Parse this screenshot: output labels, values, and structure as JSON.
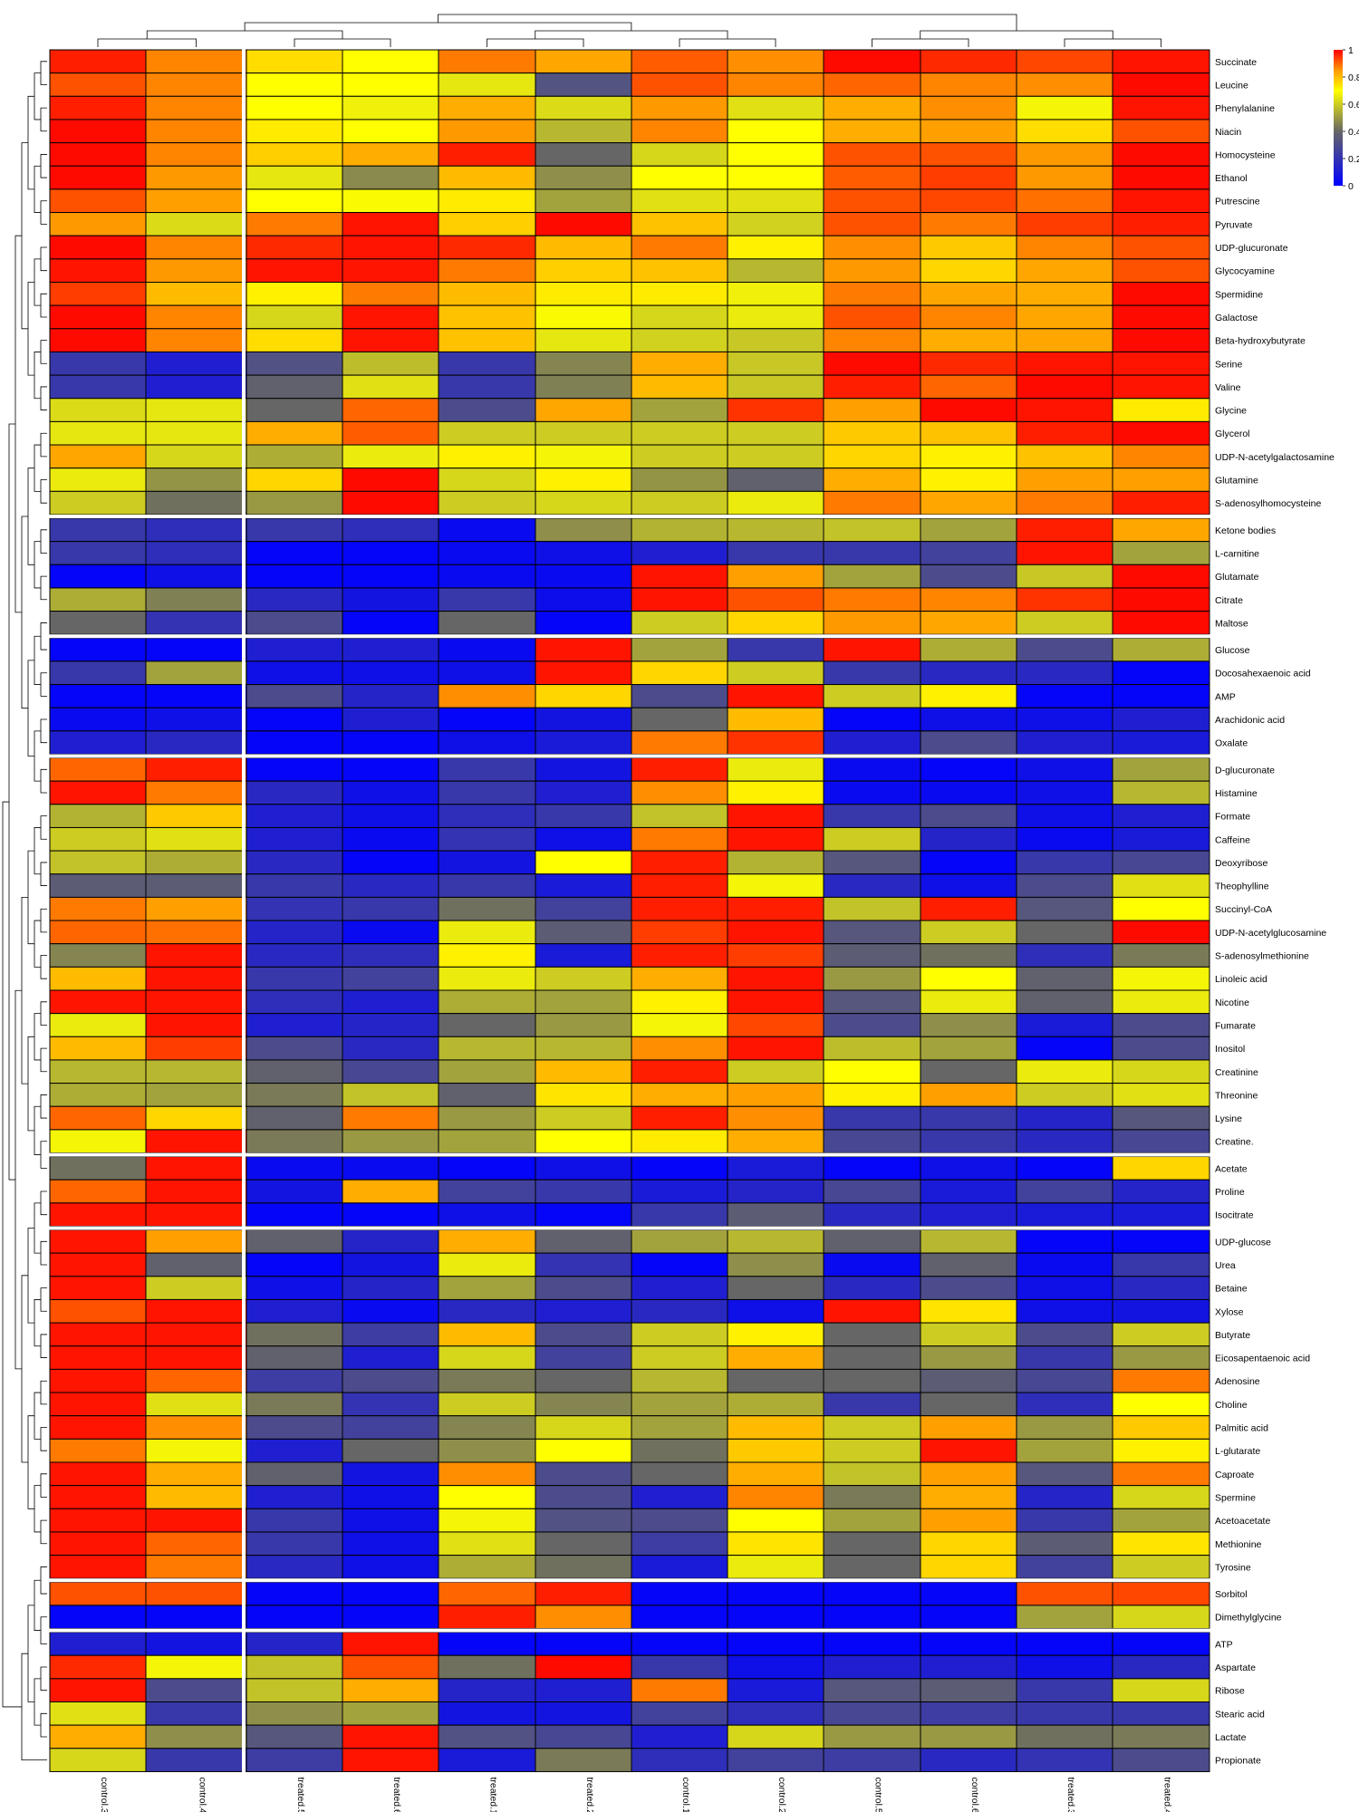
{
  "chart_data": {
    "type": "heatmap",
    "title": "",
    "colors": {
      "low": "#0000FF",
      "mid_low": "#666666",
      "mid": "#FFFF00",
      "high": "#FF0000"
    },
    "colorbar": {
      "ticks": [
        0,
        0.2,
        0.4,
        0.6,
        0.8,
        1
      ],
      "labels": [
        "0",
        "0.2",
        "0.4",
        "0.6",
        "0.8",
        "1"
      ]
    },
    "columns": [
      "control.3",
      "control.4",
      "treated.5",
      "treated.6",
      "treated.1",
      "treated.2",
      "control.1",
      "control.2",
      "control.5",
      "control.6",
      "treated.3",
      "treated.4"
    ],
    "rows": [
      "Succinate",
      "Leucine",
      "Phenylalanine",
      "Niacin",
      "Homocysteine",
      "Ethanol",
      "Putrescine",
      "Pyruvate",
      "UDP-glucuronate",
      "Glycocyamine",
      "Spermidine",
      "Galactose",
      "Beta-hydroxybutyrate",
      "Serine",
      "Valine",
      "Glycine",
      "Glycerol",
      "UDP-N-acetylgalactosamine",
      "Glutamine",
      "S-adenosylhomocysteine",
      "Ketone bodies",
      "L-carnitine",
      "Glutamate",
      "Citrate",
      "Maltose",
      "Glucose",
      "Docosahexaenoic acid",
      "AMP",
      "Arachidonic acid",
      "Oxalate",
      "D-glucuronate",
      "Histamine",
      "Formate",
      "Caffeine",
      "Deoxyribose",
      "Theophylline",
      "Succinyl-CoA",
      "UDP-N-acetylglucosamine",
      "S-adenosylmethionine",
      "Linoleic acid",
      "Nicotine",
      "Fumarate",
      "Inositol",
      "Creatinine",
      "Threonine",
      "Lysine",
      "Creatine.",
      "Acetate",
      "Proline",
      "Isocitrate",
      "UDP-glucose",
      "Urea",
      "Betaine",
      "Xylose",
      "Butyrate",
      "Eicosapentaenoic acid",
      "Adenosine",
      "Choline",
      "Palmitic acid",
      "L-glutarate",
      "Caproate",
      "Spermine",
      "Acetoacetate",
      "Methionine",
      "Tyrosine",
      "Sorbitol",
      "Dimethylglycine",
      "ATP",
      "Aspartate",
      "Ribose",
      "Stearic acid",
      "Lactate",
      "Propionate"
    ],
    "row_group_sizes": [
      20,
      5,
      5,
      17,
      3,
      15,
      2,
      6
    ],
    "col_group_sizes": [
      2,
      10
    ],
    "values": [
      [
        0.97,
        0.87,
        0.75,
        0.7,
        0.88,
        0.83,
        0.91,
        0.86,
        0.99,
        0.96,
        0.93,
        0.98
      ],
      [
        0.92,
        0.87,
        0.7,
        0.7,
        0.65,
        0.33,
        0.92,
        0.87,
        0.9,
        0.87,
        0.86,
        0.99
      ],
      [
        0.97,
        0.87,
        0.7,
        0.67,
        0.82,
        0.63,
        0.85,
        0.64,
        0.82,
        0.86,
        0.68,
        0.98
      ],
      [
        0.99,
        0.87,
        0.73,
        0.7,
        0.85,
        0.56,
        0.87,
        0.7,
        0.82,
        0.84,
        0.75,
        0.92
      ],
      [
        0.99,
        0.87,
        0.77,
        0.82,
        0.97,
        0.4,
        0.62,
        0.7,
        0.92,
        0.92,
        0.85,
        0.99
      ],
      [
        0.99,
        0.85,
        0.65,
        0.47,
        0.8,
        0.48,
        0.7,
        0.7,
        0.91,
        0.94,
        0.85,
        0.99
      ],
      [
        0.92,
        0.84,
        0.7,
        0.69,
        0.73,
        0.52,
        0.64,
        0.64,
        0.92,
        0.93,
        0.89,
        0.98
      ],
      [
        0.85,
        0.63,
        0.88,
        0.98,
        0.77,
        0.99,
        0.79,
        0.61,
        0.92,
        0.88,
        0.94,
        0.97
      ],
      [
        0.99,
        0.87,
        0.96,
        0.98,
        0.96,
        0.8,
        0.88,
        0.72,
        0.86,
        0.78,
        0.87,
        0.92
      ],
      [
        0.98,
        0.85,
        0.98,
        0.98,
        0.88,
        0.77,
        0.79,
        0.56,
        0.85,
        0.76,
        0.83,
        0.92
      ],
      [
        0.94,
        0.8,
        0.72,
        0.88,
        0.8,
        0.73,
        0.73,
        0.67,
        0.88,
        0.83,
        0.82,
        0.99
      ],
      [
        0.99,
        0.87,
        0.62,
        0.98,
        0.79,
        0.69,
        0.62,
        0.66,
        0.92,
        0.87,
        0.83,
        0.99
      ],
      [
        0.99,
        0.87,
        0.75,
        0.98,
        0.79,
        0.65,
        0.61,
        0.59,
        0.87,
        0.82,
        0.83,
        0.99
      ],
      [
        0.22,
        0.12,
        0.32,
        0.57,
        0.22,
        0.46,
        0.82,
        0.59,
        0.99,
        0.96,
        0.98,
        0.98
      ],
      [
        0.22,
        0.12,
        0.38,
        0.64,
        0.22,
        0.45,
        0.8,
        0.59,
        0.97,
        0.9,
        0.99,
        0.98
      ],
      [
        0.63,
        0.65,
        0.4,
        0.9,
        0.3,
        0.83,
        0.52,
        0.95,
        0.84,
        0.99,
        0.98,
        0.73
      ],
      [
        0.65,
        0.65,
        0.82,
        0.91,
        0.6,
        0.6,
        0.6,
        0.6,
        0.78,
        0.79,
        0.97,
        0.99
      ],
      [
        0.83,
        0.62,
        0.54,
        0.66,
        0.72,
        0.68,
        0.6,
        0.6,
        0.76,
        0.72,
        0.79,
        0.87
      ],
      [
        0.66,
        0.49,
        0.76,
        0.99,
        0.62,
        0.72,
        0.49,
        0.38,
        0.82,
        0.72,
        0.84,
        0.84
      ],
      [
        0.6,
        0.42,
        0.5,
        0.99,
        0.6,
        0.62,
        0.6,
        0.66,
        0.88,
        0.83,
        0.88,
        0.97
      ],
      [
        0.22,
        0.18,
        0.22,
        0.18,
        0.04,
        0.48,
        0.55,
        0.56,
        0.58,
        0.52,
        0.97,
        0.83
      ],
      [
        0.22,
        0.18,
        0.02,
        0.02,
        0.04,
        0.06,
        0.12,
        0.22,
        0.22,
        0.26,
        0.98,
        0.52
      ],
      [
        0.02,
        0.06,
        0.02,
        0.02,
        0.04,
        0.04,
        0.98,
        0.84,
        0.52,
        0.3,
        0.59,
        0.99
      ],
      [
        0.54,
        0.45,
        0.16,
        0.08,
        0.22,
        0.05,
        0.98,
        0.92,
        0.88,
        0.87,
        0.95,
        0.99
      ],
      [
        0.4,
        0.2,
        0.3,
        0.02,
        0.4,
        0.02,
        0.6,
        0.76,
        0.85,
        0.83,
        0.6,
        0.99
      ],
      [
        0.02,
        0.02,
        0.12,
        0.12,
        0.04,
        0.98,
        0.52,
        0.22,
        0.98,
        0.54,
        0.3,
        0.54
      ],
      [
        0.22,
        0.52,
        0.06,
        0.06,
        0.06,
        0.98,
        0.76,
        0.6,
        0.22,
        0.16,
        0.16,
        0.02
      ],
      [
        0.02,
        0.02,
        0.3,
        0.14,
        0.86,
        0.76,
        0.3,
        0.98,
        0.6,
        0.72,
        0.02,
        0.02
      ],
      [
        0.04,
        0.06,
        0.02,
        0.12,
        0.02,
        0.08,
        0.4,
        0.8,
        0.02,
        0.06,
        0.06,
        0.12
      ],
      [
        0.12,
        0.16,
        0.02,
        0.02,
        0.06,
        0.1,
        0.88,
        0.95,
        0.12,
        0.3,
        0.12,
        0.1
      ],
      [
        0.9,
        0.97,
        0.02,
        0.02,
        0.22,
        0.08,
        0.97,
        0.66,
        0.04,
        0.02,
        0.06,
        0.52
      ],
      [
        0.98,
        0.88,
        0.16,
        0.06,
        0.22,
        0.12,
        0.86,
        0.72,
        0.04,
        0.04,
        0.06,
        0.56
      ],
      [
        0.55,
        0.78,
        0.12,
        0.06,
        0.18,
        0.22,
        0.58,
        0.98,
        0.22,
        0.3,
        0.06,
        0.12
      ],
      [
        0.6,
        0.64,
        0.12,
        0.04,
        0.2,
        0.06,
        0.88,
        0.98,
        0.6,
        0.14,
        0.04,
        0.1
      ],
      [
        0.58,
        0.54,
        0.16,
        0.02,
        0.08,
        0.7,
        0.97,
        0.55,
        0.34,
        0.02,
        0.22,
        0.28
      ],
      [
        0.36,
        0.36,
        0.22,
        0.16,
        0.22,
        0.1,
        0.97,
        0.68,
        0.16,
        0.06,
        0.3,
        0.64
      ],
      [
        0.88,
        0.84,
        0.2,
        0.22,
        0.42,
        0.26,
        0.97,
        0.97,
        0.58,
        0.97,
        0.34,
        0.7
      ],
      [
        0.9,
        0.89,
        0.14,
        0.04,
        0.66,
        0.36,
        0.94,
        0.98,
        0.34,
        0.6,
        0.4,
        0.99
      ],
      [
        0.46,
        0.98,
        0.16,
        0.18,
        0.72,
        0.1,
        0.97,
        0.94,
        0.36,
        0.42,
        0.18,
        0.44
      ],
      [
        0.8,
        0.98,
        0.22,
        0.26,
        0.66,
        0.6,
        0.82,
        0.98,
        0.5,
        0.7,
        0.38,
        0.68
      ],
      [
        0.98,
        0.98,
        0.18,
        0.12,
        0.54,
        0.52,
        0.72,
        0.98,
        0.34,
        0.66,
        0.38,
        0.66
      ],
      [
        0.66,
        0.98,
        0.12,
        0.14,
        0.4,
        0.5,
        0.68,
        0.93,
        0.3,
        0.48,
        0.1,
        0.3
      ],
      [
        0.8,
        0.94,
        0.3,
        0.16,
        0.56,
        0.56,
        0.86,
        0.98,
        0.57,
        0.52,
        0.02,
        0.3
      ],
      [
        0.56,
        0.56,
        0.38,
        0.28,
        0.52,
        0.8,
        0.97,
        0.6,
        0.7,
        0.4,
        0.66,
        0.62
      ],
      [
        0.54,
        0.52,
        0.44,
        0.58,
        0.38,
        0.74,
        0.82,
        0.84,
        0.72,
        0.84,
        0.6,
        0.64
      ],
      [
        0.9,
        0.76,
        0.38,
        0.88,
        0.5,
        0.6,
        0.97,
        0.86,
        0.22,
        0.22,
        0.14,
        0.34
      ],
      [
        0.68,
        0.98,
        0.44,
        0.5,
        0.52,
        0.7,
        0.73,
        0.82,
        0.28,
        0.22,
        0.16,
        0.28
      ],
      [
        0.42,
        0.98,
        0.04,
        0.04,
        0.02,
        0.06,
        0.02,
        0.1,
        0.02,
        0.06,
        0.02,
        0.76
      ],
      [
        0.9,
        0.98,
        0.08,
        0.82,
        0.26,
        0.22,
        0.1,
        0.14,
        0.28,
        0.1,
        0.26,
        0.14
      ],
      [
        0.98,
        0.98,
        0.02,
        0.02,
        0.06,
        0.02,
        0.22,
        0.36,
        0.16,
        0.12,
        0.1,
        0.1
      ],
      [
        0.98,
        0.84,
        0.38,
        0.14,
        0.82,
        0.38,
        0.52,
        0.56,
        0.38,
        0.56,
        0.02,
        0.02
      ],
      [
        0.98,
        0.38,
        0.02,
        0.08,
        0.66,
        0.2,
        0.02,
        0.48,
        0.04,
        0.38,
        0.04,
        0.22
      ],
      [
        0.98,
        0.6,
        0.06,
        0.14,
        0.52,
        0.3,
        0.12,
        0.4,
        0.16,
        0.3,
        0.06,
        0.16
      ],
      [
        0.92,
        0.98,
        0.12,
        0.04,
        0.16,
        0.12,
        0.16,
        0.06,
        0.98,
        0.74,
        0.06,
        0.08
      ],
      [
        0.98,
        0.98,
        0.42,
        0.24,
        0.8,
        0.3,
        0.6,
        0.72,
        0.4,
        0.6,
        0.3,
        0.6
      ],
      [
        0.98,
        0.98,
        0.38,
        0.12,
        0.62,
        0.26,
        0.6,
        0.82,
        0.4,
        0.5,
        0.22,
        0.5
      ],
      [
        0.98,
        0.9,
        0.24,
        0.3,
        0.44,
        0.4,
        0.56,
        0.4,
        0.4,
        0.36,
        0.28,
        0.88
      ],
      [
        0.98,
        0.64,
        0.44,
        0.2,
        0.6,
        0.46,
        0.52,
        0.54,
        0.22,
        0.4,
        0.18,
        0.7
      ],
      [
        0.98,
        0.86,
        0.3,
        0.26,
        0.46,
        0.62,
        0.52,
        0.8,
        0.6,
        0.84,
        0.5,
        0.78
      ],
      [
        0.88,
        0.68,
        0.12,
        0.4,
        0.48,
        0.7,
        0.42,
        0.78,
        0.6,
        0.98,
        0.52,
        0.72
      ],
      [
        0.98,
        0.82,
        0.38,
        0.08,
        0.86,
        0.3,
        0.4,
        0.82,
        0.58,
        0.84,
        0.34,
        0.88
      ],
      [
        0.98,
        0.8,
        0.12,
        0.06,
        0.7,
        0.3,
        0.12,
        0.87,
        0.44,
        0.82,
        0.14,
        0.62
      ],
      [
        0.98,
        0.98,
        0.22,
        0.06,
        0.68,
        0.32,
        0.3,
        0.7,
        0.52,
        0.84,
        0.22,
        0.52
      ],
      [
        0.98,
        0.9,
        0.22,
        0.06,
        0.64,
        0.4,
        0.24,
        0.74,
        0.4,
        0.76,
        0.36,
        0.74
      ],
      [
        0.98,
        0.88,
        0.16,
        0.06,
        0.54,
        0.42,
        0.1,
        0.66,
        0.4,
        0.76,
        0.26,
        0.6
      ],
      [
        0.92,
        0.92,
        0.02,
        0.02,
        0.9,
        0.97,
        0.02,
        0.02,
        0.02,
        0.02,
        0.92,
        0.93
      ],
      [
        0.02,
        0.02,
        0.02,
        0.02,
        0.97,
        0.86,
        0.02,
        0.02,
        0.02,
        0.02,
        0.52,
        0.62
      ],
      [
        0.12,
        0.08,
        0.14,
        0.98,
        0.02,
        0.02,
        0.02,
        0.02,
        0.02,
        0.02,
        0.02,
        0.02
      ],
      [
        0.96,
        0.68,
        0.58,
        0.92,
        0.42,
        0.99,
        0.22,
        0.06,
        0.12,
        0.12,
        0.06,
        0.16
      ],
      [
        0.98,
        0.3,
        0.58,
        0.82,
        0.14,
        0.12,
        0.88,
        0.1,
        0.34,
        0.36,
        0.22,
        0.62
      ],
      [
        0.64,
        0.22,
        0.48,
        0.52,
        0.08,
        0.08,
        0.26,
        0.18,
        0.28,
        0.24,
        0.22,
        0.22
      ],
      [
        0.82,
        0.48,
        0.34,
        0.98,
        0.32,
        0.28,
        0.12,
        0.62,
        0.5,
        0.5,
        0.42,
        0.44
      ],
      [
        0.62,
        0.22,
        0.24,
        0.98,
        0.1,
        0.44,
        0.18,
        0.26,
        0.24,
        0.16,
        0.2,
        0.3
      ]
    ]
  }
}
